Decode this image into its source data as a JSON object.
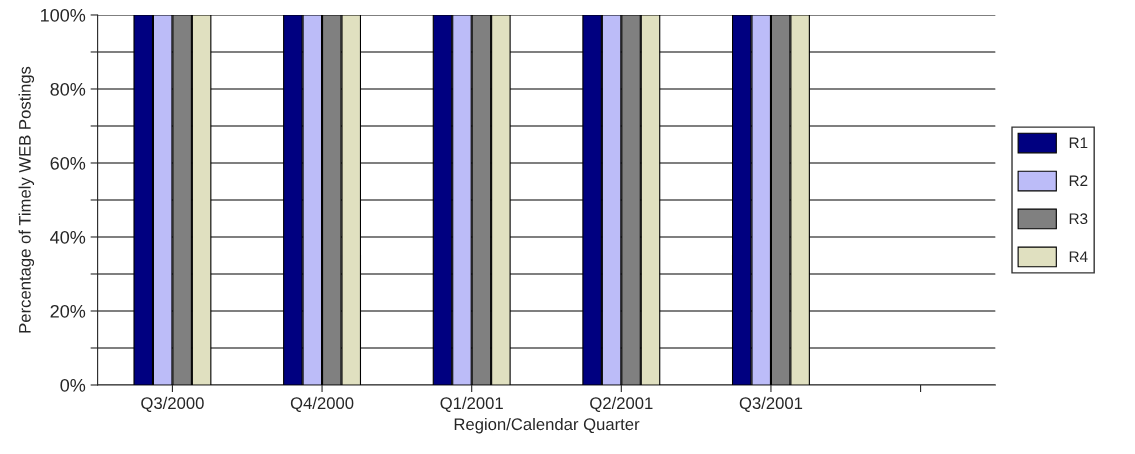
{
  "chart_data": {
    "type": "bar",
    "xlabel": "Region/Calendar Quarter",
    "ylabel": "Percentage of Timely WEB Postings",
    "categories": [
      "Q3/2000",
      "Q4/2000",
      "Q1/2001",
      "Q2/2001",
      "Q3/2001",
      null
    ],
    "series": [
      {
        "name": "R1",
        "color": "#000080",
        "values": [
          100,
          100,
          100,
          100,
          100,
          null
        ]
      },
      {
        "name": "R2",
        "color": "#bcbcf8",
        "values": [
          100,
          100,
          100,
          100,
          100,
          null
        ]
      },
      {
        "name": "R3",
        "color": "#808080",
        "values": [
          100,
          100,
          100,
          100,
          100,
          null
        ]
      },
      {
        "name": "R4",
        "color": "#e0e0c0",
        "values": [
          100,
          100,
          100,
          100,
          100,
          null
        ]
      }
    ],
    "ylim": [
      0,
      100
    ],
    "yticks": [
      {
        "value": 0,
        "label": "0%"
      },
      {
        "value": 10,
        "label": null
      },
      {
        "value": 20,
        "label": "20%"
      },
      {
        "value": 30,
        "label": null
      },
      {
        "value": 40,
        "label": "40%"
      },
      {
        "value": 50,
        "label": null
      },
      {
        "value": 60,
        "label": "60%"
      },
      {
        "value": 70,
        "label": null
      },
      {
        "value": 80,
        "label": "80%"
      },
      {
        "value": 90,
        "label": null
      },
      {
        "value": 100,
        "label": "100%"
      }
    ],
    "grid": "y",
    "legend": "right"
  }
}
